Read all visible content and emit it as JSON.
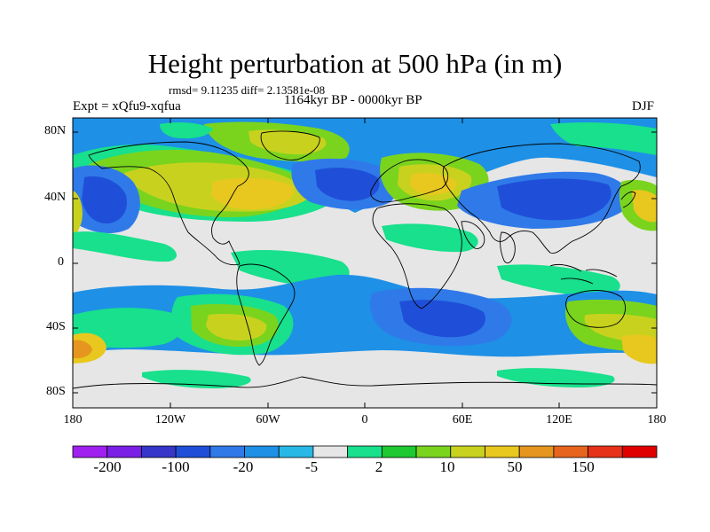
{
  "title": "Height perturbation at 500 hPa (in m)",
  "stats": "rmsd= 9.11235 diff= 2.13581e-08",
  "experiment": "Expt = xQfu9-xqfua",
  "period": "1164kyr BP - 0000kyr BP",
  "season": "DJF",
  "lat_ticks": [
    "80N",
    "40N",
    "0",
    "40S",
    "80S"
  ],
  "lon_ticks": [
    "180",
    "120W",
    "60W",
    "0",
    "60E",
    "120E",
    "180"
  ],
  "colorbar": {
    "colors": [
      "#a020f0",
      "#7a1fe6",
      "#3636c8",
      "#1f4fd8",
      "#2f7ae8",
      "#1e90e6",
      "#28b8e6",
      "#e6e6e6",
      "#18e08c",
      "#1ec830",
      "#7ad41e",
      "#c8d21e",
      "#e8c81e",
      "#e6961e",
      "#e6641e",
      "#e63218",
      "#e00000"
    ],
    "labels": [
      "-200",
      "-100",
      "-20",
      "-5",
      "2",
      "10",
      "50",
      "150"
    ]
  }
}
